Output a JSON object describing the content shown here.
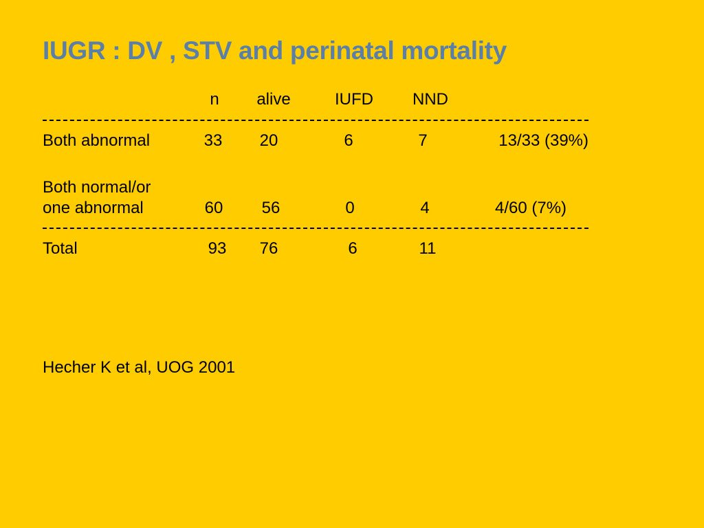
{
  "slide": {
    "title": "IUGR  : DV , STV and perinatal mortality",
    "table": {
      "headers": {
        "n": "n",
        "alive": "alive",
        "iufd": "IUFD",
        "nnd": "NND"
      },
      "rows": [
        {
          "label_line1": "Both abnormal",
          "n": "33",
          "alive": "20",
          "iufd": "6",
          "nnd": "7",
          "mortality": "13/33 (39%)"
        },
        {
          "label_line1": "Both normal/or",
          "label_line2": "one abnormal",
          "n": "60",
          "alive": "56",
          "iufd": "0",
          "nnd": "4",
          "mortality": "4/60 (7%)"
        }
      ],
      "total": {
        "label": "Total",
        "n": "93",
        "alive": "76",
        "iufd": "6",
        "nnd": "11"
      }
    },
    "citation": "Hecher K et al, UOG 2001"
  },
  "colors": {
    "background": "#FFCC00",
    "title": "#5B7FA6",
    "text": "#000000"
  }
}
